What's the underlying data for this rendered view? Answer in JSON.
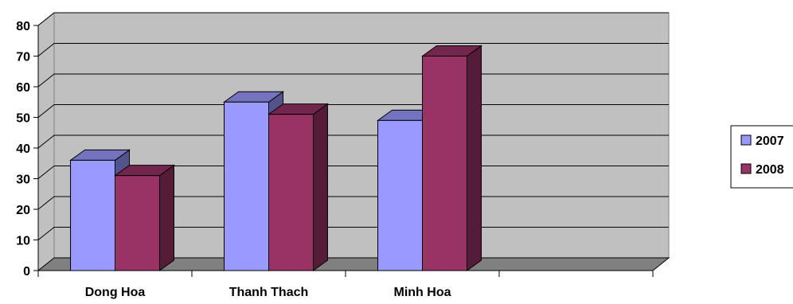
{
  "chart_data": {
    "type": "bar",
    "title": "",
    "xlabel": "",
    "ylabel": "",
    "categories": [
      "Dong Hoa",
      "Thanh Thach",
      "Minh Hoa",
      ""
    ],
    "series": [
      {
        "name": "2007",
        "values": [
          36,
          55,
          49,
          null
        ],
        "color": "#9999FF"
      },
      {
        "name": "2008",
        "values": [
          31,
          51,
          70,
          null
        ],
        "color": "#993366"
      }
    ],
    "ylim": [
      0,
      80
    ],
    "yticks": [
      "0",
      "10",
      "20",
      "30",
      "40",
      "50",
      "60",
      "70",
      "80"
    ],
    "grid": true,
    "three_d": true,
    "legend": {
      "position": "right"
    },
    "colors": {
      "wall": "#C0C0C0",
      "floor": "#808080",
      "gridline": "#000000"
    }
  }
}
